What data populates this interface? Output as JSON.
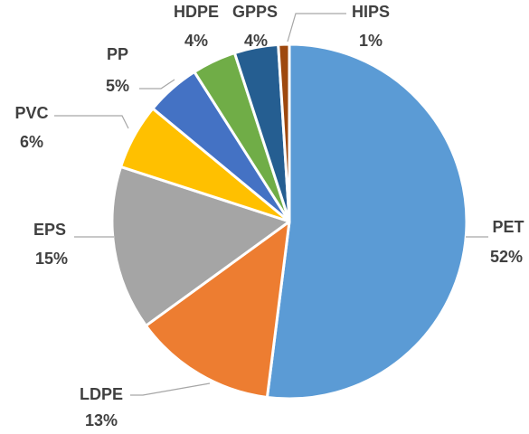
{
  "chart_data": {
    "type": "pie",
    "categories": [
      "PET",
      "LDPE",
      "EPS",
      "PVC",
      "PP",
      "HDPE",
      "GPPS",
      "HIPS"
    ],
    "values": [
      52,
      13,
      15,
      6,
      5,
      4,
      4,
      1
    ],
    "value_labels": [
      "52%",
      "13%",
      "15%",
      "6%",
      "5%",
      "4%",
      "4%",
      "1%"
    ],
    "colors": [
      "#5b9bd5",
      "#ed7d31",
      "#a5a5a5",
      "#ffc000",
      "#4472c4",
      "#70ad47",
      "#255e91",
      "#9e480e"
    ]
  }
}
